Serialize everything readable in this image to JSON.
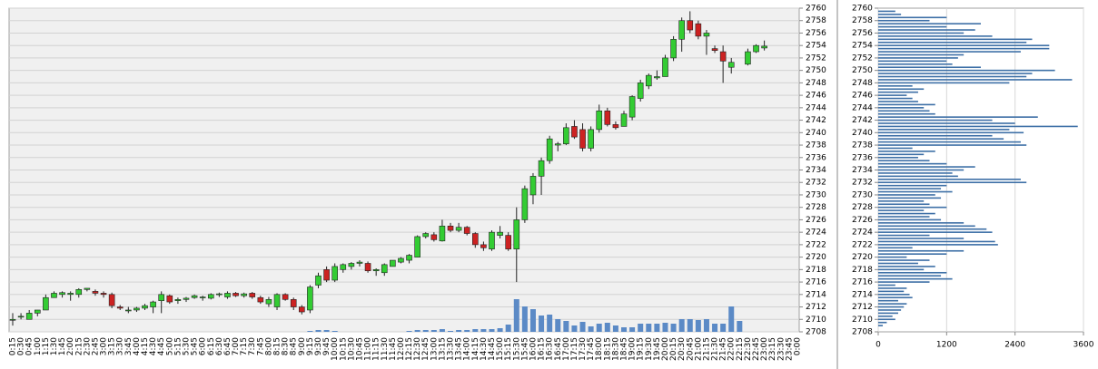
{
  "chart_data": [
    {
      "type": "candlestick",
      "categories": [
        "0:15",
        "0:30",
        "0:45",
        "1:00",
        "1:15",
        "1:30",
        "1:45",
        "2:00",
        "2:15",
        "2:30",
        "2:45",
        "3:00",
        "3:15",
        "3:30",
        "3:45",
        "4:00",
        "4:15",
        "4:30",
        "4:45",
        "5:00",
        "5:15",
        "5:30",
        "5:45",
        "6:00",
        "6:15",
        "6:30",
        "6:45",
        "7:00",
        "7:15",
        "7:30",
        "7:45",
        "8:00",
        "8:15",
        "8:30",
        "8:45",
        "9:00",
        "9:15",
        "9:30",
        "9:45",
        "10:00",
        "10:15",
        "10:30",
        "10:45",
        "11:00",
        "11:15",
        "11:30",
        "11:45",
        "12:00",
        "12:15",
        "12:30",
        "12:45",
        "13:00",
        "13:15",
        "13:30",
        "13:45",
        "14:00",
        "14:15",
        "14:30",
        "14:45",
        "15:00",
        "15:15",
        "15:30",
        "15:45",
        "16:00",
        "16:15",
        "16:30",
        "16:45",
        "17:00",
        "17:15",
        "17:30",
        "17:45",
        "18:00",
        "18:15",
        "18:30",
        "18:45",
        "19:00",
        "19:15",
        "19:30",
        "19:45",
        "20:00",
        "20:15",
        "20:30",
        "20:45",
        "21:00",
        "21:15",
        "21:30",
        "21:45",
        "22:00",
        "22:15",
        "22:30",
        "22:45",
        "23:00",
        "23:15",
        "23:30",
        "23:45",
        "0:00"
      ],
      "open": [
        2710,
        2710.5,
        2710,
        2711,
        2711.5,
        2713.5,
        2714,
        2714,
        2714,
        2714.8,
        2714.5,
        2714.2,
        2714,
        2712,
        2711.5,
        2711.5,
        2711.8,
        2712,
        2713,
        2713.8,
        2713,
        2713.2,
        2713.5,
        2713.5,
        2713.4,
        2714,
        2713.6,
        2714.2,
        2713.8,
        2714.2,
        2713.5,
        2712.5,
        2712,
        2714,
        2713.2,
        2712,
        2711.5,
        2715.5,
        2718,
        2716.3,
        2718,
        2718.5,
        2719,
        2719,
        2717.8,
        2717.5,
        2718.5,
        2719.2,
        2719.5,
        2720,
        2723.3,
        2723.6,
        2722.6,
        2725,
        2724.3,
        2724.8,
        2723.8,
        2722,
        2721.3,
        2723.5,
        2723.5,
        2721.3,
        2726,
        2730,
        2733,
        2735.5,
        2738,
        2738.2,
        2741,
        2740.5,
        2737.5,
        2740.5,
        2743.5,
        2741.3,
        2741,
        2742.5,
        2745.5,
        2747.5,
        2748.8,
        2749,
        2752,
        2755,
        2758,
        2757.5,
        2755.5,
        2753.5,
        2753,
        2750.5,
        null,
        2751,
        2753,
        2753.6,
        null,
        null,
        null,
        null
      ],
      "high": [
        2711,
        2711,
        2711.5,
        2711.5,
        2714,
        2714.5,
        2714.5,
        2714.5,
        2715,
        2715,
        2714.8,
        2714.5,
        2714.3,
        2712.3,
        2712,
        2712,
        2712.5,
        2713,
        2714.5,
        2714,
        2713.5,
        2713.6,
        2714,
        2713.8,
        2714.2,
        2714.3,
        2714.5,
        2714.4,
        2714.3,
        2714.4,
        2713.8,
        2713.6,
        2714.2,
        2714.2,
        2713.5,
        2712.3,
        2715.5,
        2717.5,
        2718.5,
        2719,
        2719,
        2719.2,
        2719.5,
        2719.3,
        2718.2,
        2719,
        2719.5,
        2720,
        2720.5,
        2723.5,
        2724,
        2724,
        2726,
        2725.5,
        2725.5,
        2725,
        2724,
        2722.5,
        2724.3,
        2725,
        2724,
        2728,
        2731.5,
        2733.5,
        2736,
        2739.5,
        2738.5,
        2741.5,
        2742,
        2741.5,
        2741,
        2744.5,
        2744,
        2741.8,
        2743.5,
        2746,
        2748.5,
        2749.5,
        2750,
        2752.5,
        2755.5,
        2758.5,
        2759.5,
        2758,
        2756.5,
        2754,
        2754,
        2752,
        null,
        2753.5,
        2754.2,
        2754.8,
        null,
        null,
        null,
        null
      ],
      "low": [
        2709,
        2710,
        2710,
        2710.5,
        2711.5,
        2713.5,
        2713.5,
        2713,
        2713.5,
        2714.5,
        2713.8,
        2713.5,
        2711.8,
        2711.5,
        2711,
        2711.2,
        2711.5,
        2711,
        2711,
        2712.5,
        2712.5,
        2712.8,
        2713.3,
        2713,
        2713.2,
        2713.6,
        2713.3,
        2713.6,
        2713.5,
        2713.3,
        2712.5,
        2712,
        2711.5,
        2713,
        2711.5,
        2710.8,
        2711,
        2715,
        2716,
        2716,
        2717.5,
        2718,
        2718.5,
        2717.5,
        2717,
        2717,
        2718.5,
        2719,
        2719,
        2720,
        2723,
        2722.5,
        2722.5,
        2724,
        2724,
        2723.5,
        2721.5,
        2721,
        2721,
        2723,
        2721,
        2716,
        2725.5,
        2728.5,
        2730,
        2735,
        2737,
        2738,
        2739,
        2737,
        2737,
        2740,
        2741,
        2740.5,
        2741,
        2742,
        2745,
        2747,
        2748.5,
        2749,
        2751.5,
        2753,
        2756,
        2755,
        2752.5,
        2752.8,
        2748,
        2749.5,
        null,
        2750.8,
        2752.8,
        2753.2,
        null,
        null,
        null,
        null
      ],
      "close": [
        2710,
        2710.5,
        2711,
        2711.5,
        2713.5,
        2714.2,
        2714.3,
        2714.2,
        2714.8,
        2715,
        2714.2,
        2714,
        2712.2,
        2711.8,
        2711.5,
        2711.8,
        2712.2,
        2712.8,
        2714,
        2712.8,
        2713.2,
        2713.4,
        2713.8,
        2713.6,
        2714,
        2714.1,
        2714.2,
        2713.8,
        2714.1,
        2713.6,
        2712.8,
        2713.2,
        2714,
        2713.2,
        2712,
        2711.2,
        2715.2,
        2717,
        2716.3,
        2718.5,
        2718.8,
        2719,
        2719.2,
        2717.8,
        2718,
        2718.8,
        2719.5,
        2719.8,
        2720.3,
        2723.3,
        2723.8,
        2722.8,
        2725,
        2724.3,
        2724.8,
        2723.8,
        2722,
        2721.5,
        2724,
        2724,
        2721.3,
        2726,
        2731,
        2733,
        2735.5,
        2739,
        2738.2,
        2740.8,
        2739.3,
        2737.5,
        2740.5,
        2743.5,
        2741.3,
        2740.8,
        2743,
        2745.8,
        2748,
        2749.2,
        2749,
        2752,
        2755,
        2758,
        2756.5,
        2755.5,
        2756,
        2753.2,
        2751.5,
        2751.3,
        null,
        2753,
        2754,
        2753.9,
        null,
        null,
        null,
        null
      ],
      "up_color": "#33cc33",
      "down_color": "#cc2222",
      "volume": {
        "color": "#5b8ac6",
        "values": [
          null,
          null,
          null,
          null,
          null,
          null,
          null,
          null,
          null,
          null,
          null,
          null,
          null,
          null,
          null,
          null,
          null,
          null,
          null,
          null,
          null,
          null,
          null,
          null,
          null,
          null,
          null,
          null,
          null,
          null,
          null,
          null,
          null,
          null,
          null,
          null,
          1,
          2,
          2,
          1,
          null,
          null,
          null,
          null,
          null,
          null,
          null,
          null,
          1,
          2,
          2,
          2,
          3,
          1,
          2,
          2,
          3,
          3,
          3,
          4,
          8,
          36,
          28,
          25,
          18,
          19,
          14,
          12,
          7,
          11,
          6,
          9,
          10,
          7,
          5,
          5,
          9,
          9,
          9,
          10,
          9,
          14,
          14,
          13,
          14,
          9,
          9,
          28,
          12,
          null,
          null,
          null,
          null,
          null,
          null,
          null
        ]
      },
      "ylim": [
        2708,
        2760
      ],
      "yticks": [
        2708,
        2710,
        2712,
        2714,
        2716,
        2718,
        2720,
        2722,
        2724,
        2726,
        2728,
        2730,
        2732,
        2734,
        2736,
        2738,
        2740,
        2742,
        2744,
        2746,
        2748,
        2750,
        2752,
        2754,
        2756,
        2758,
        2760
      ],
      "grid": true
    },
    {
      "type": "bar",
      "orientation": "horizontal",
      "color": "#3d6fa6",
      "levels": [
        2709,
        2709.5,
        2710,
        2710.5,
        2711,
        2711.5,
        2712,
        2712.5,
        2713,
        2713.5,
        2714,
        2714.5,
        2715,
        2715.5,
        2716,
        2716.5,
        2717,
        2717.5,
        2718,
        2718.5,
        2719,
        2719.5,
        2720,
        2720.5,
        2721,
        2721.5,
        2722,
        2722.5,
        2723,
        2723.5,
        2724,
        2724.5,
        2725,
        2725.5,
        2726,
        2726.5,
        2727,
        2727.5,
        2728,
        2728.5,
        2729,
        2729.5,
        2730,
        2730.5,
        2731,
        2731.5,
        2732,
        2732.5,
        2733,
        2733.5,
        2734,
        2734.5,
        2735,
        2735.5,
        2736,
        2736.5,
        2737,
        2737.5,
        2738,
        2738.5,
        2739,
        2739.5,
        2740,
        2740.5,
        2741,
        2741.5,
        2742,
        2742.5,
        2743,
        2743.5,
        2744,
        2744.5,
        2745,
        2745.5,
        2746,
        2746.5,
        2747,
        2747.5,
        2748,
        2748.5,
        2749,
        2749.5,
        2750,
        2750.5,
        2751,
        2751.5,
        2752,
        2752.5,
        2753,
        2753.5,
        2754,
        2754.5,
        2755,
        2755.5,
        2756,
        2756.5,
        2757,
        2757.5,
        2758,
        2758.5,
        2759,
        2759.5
      ],
      "values": [
        80,
        150,
        300,
        250,
        350,
        400,
        450,
        500,
        350,
        600,
        550,
        450,
        500,
        300,
        900,
        1300,
        1100,
        1200,
        800,
        1000,
        700,
        900,
        500,
        1200,
        1500,
        600,
        2100,
        2050,
        1500,
        900,
        2000,
        1900,
        1700,
        1500,
        1100,
        900,
        1000,
        800,
        1200,
        900,
        800,
        1100,
        1000,
        1300,
        1100,
        1200,
        2600,
        2500,
        1400,
        1300,
        1500,
        1700,
        1200,
        900,
        700,
        800,
        1000,
        600,
        2600,
        2500,
        2200,
        2000,
        2550,
        2300,
        3500,
        2400,
        2000,
        2800,
        1000,
        900,
        800,
        1000,
        700,
        600,
        500,
        700,
        800,
        600,
        2300,
        3400,
        2600,
        2700,
        3100,
        1800,
        1300,
        1200,
        1400,
        1500,
        2500,
        3000,
        3000,
        2600,
        2700,
        2000,
        1500,
        1700,
        1200,
        1800,
        900,
        1200,
        400,
        300
      ],
      "xlim": [
        0,
        3600
      ],
      "xticks": [
        0,
        1200,
        2400,
        3600
      ],
      "ylim": [
        2708,
        2760
      ],
      "yticks": [
        2708,
        2710,
        2712,
        2714,
        2716,
        2718,
        2720,
        2722,
        2724,
        2726,
        2728,
        2730,
        2732,
        2734,
        2736,
        2738,
        2740,
        2742,
        2744,
        2746,
        2748,
        2750,
        2752,
        2754,
        2756,
        2758,
        2760
      ],
      "grid": true
    }
  ]
}
